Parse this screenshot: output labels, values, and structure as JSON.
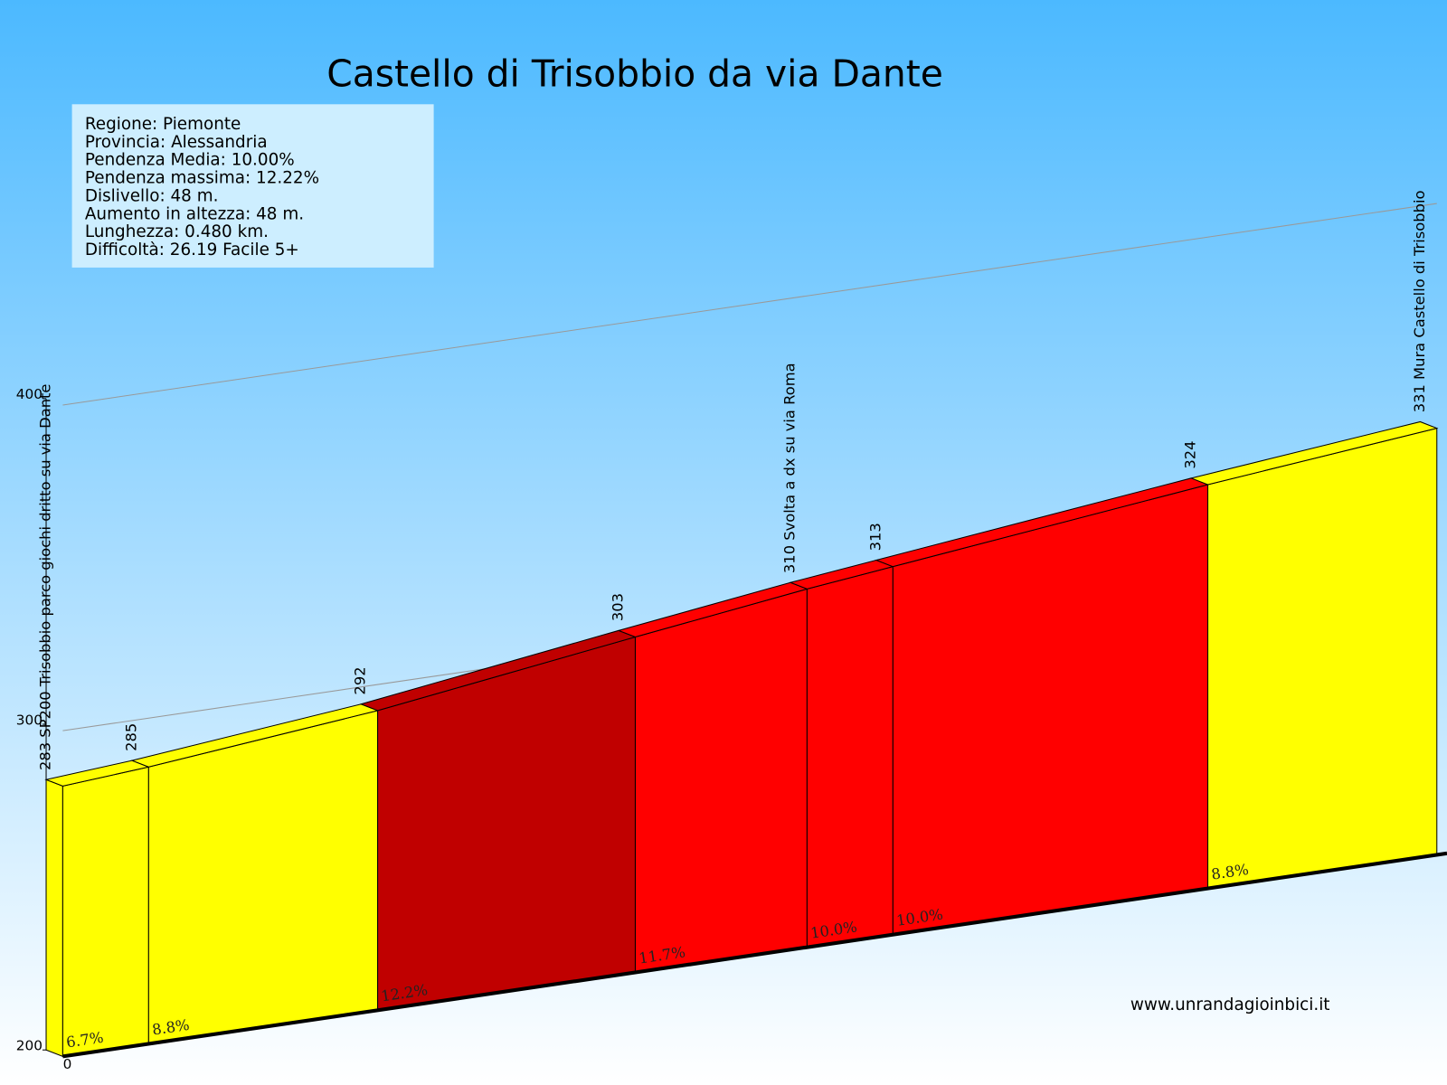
{
  "chart_data": {
    "type": "profile",
    "title": "Castello di Trisobbio da via Dante",
    "info": [
      "Regione: Piemonte",
      "Provincia: Alessandria",
      "Pendenza Media: 10.00%",
      "Pendenza massima: 12.22%",
      "Dislivello:   48 m.",
      "Aumento in altezza:   48 m.",
      "Lunghezza:  0.480 km.",
      "Difficoltà: 26.19 Facile 5+"
    ],
    "website": "www.unrandagioinbici.it",
    "x": [
      0,
      30,
      110,
      200,
      260,
      290,
      400,
      480
    ],
    "xlim": [
      0,
      480
    ],
    "xticks": [
      0
    ],
    "ylim": [
      200,
      400
    ],
    "yticks": [
      200,
      300,
      400
    ],
    "grid": true,
    "points": {
      "values": [
        283,
        285,
        292,
        303,
        310,
        313,
        324,
        331
      ],
      "value_labels": [
        "283 SP200 Trisobbio parco giochi dritto su via Dante",
        "285",
        "292",
        "303",
        "310 Svolta a dx su via Roma",
        "313",
        "324",
        "331 Mura Castello di Trisobbio"
      ]
    },
    "segments": {
      "values": [
        6.7,
        8.8,
        12.2,
        11.7,
        10.0,
        10.0,
        8.8
      ],
      "value_labels": [
        "6.7%",
        "8.8%",
        "12.2%",
        "11.7%",
        "10.0%",
        "10.0%",
        "8.8%"
      ],
      "colors": [
        "#ffff00",
        "#ffff00",
        "#c00000",
        "#ff0000",
        "#ff0000",
        "#ff0000",
        "#ffff00"
      ]
    }
  }
}
